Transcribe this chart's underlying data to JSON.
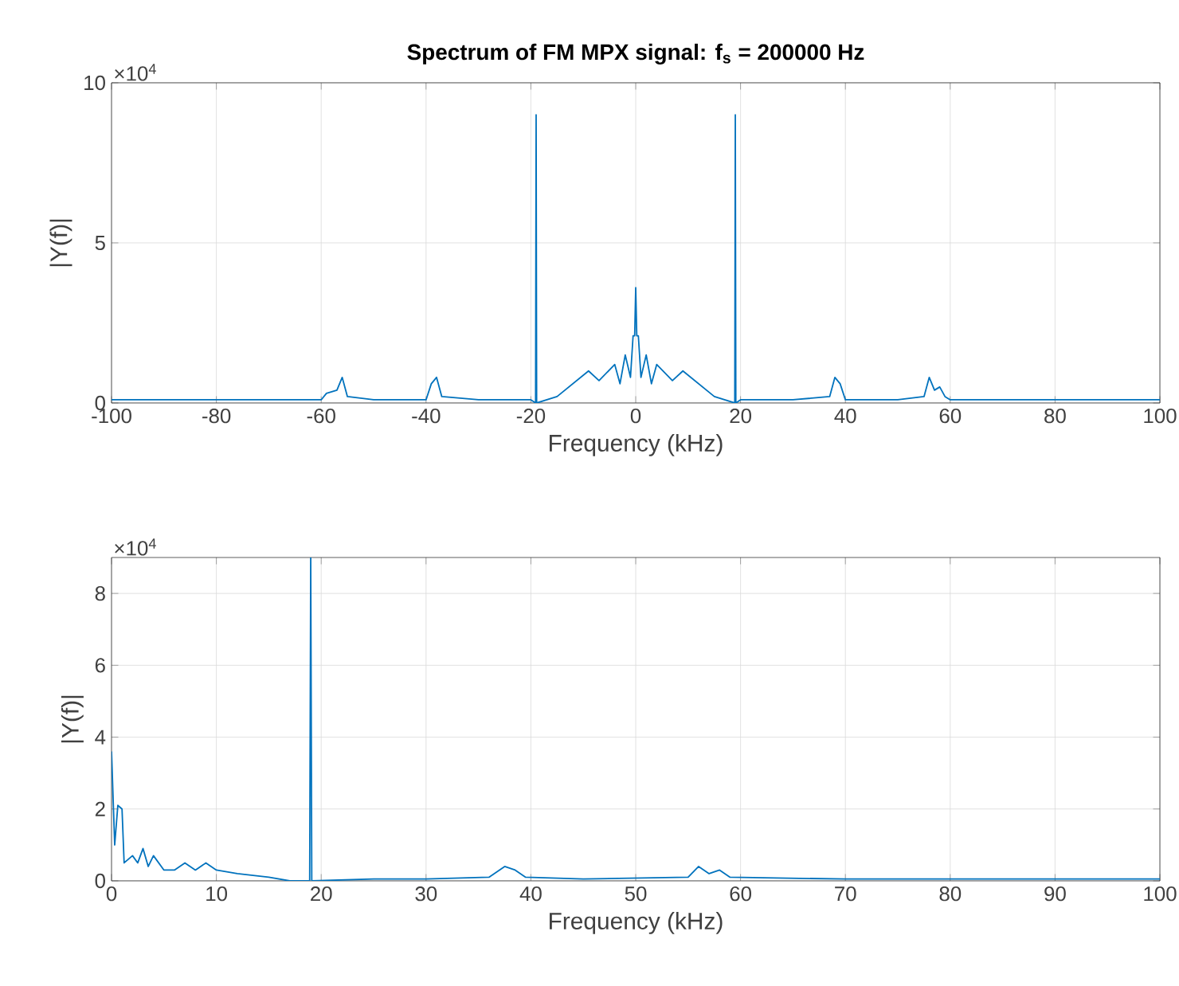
{
  "chart_data": [
    {
      "type": "line",
      "title": "Spectrum of FM MPX signal: f$_{s}$ = 200000 Hz",
      "xlabel": "Frequency (kHz)",
      "ylabel": "|Y(f)|",
      "annotations": [
        "×10$^{4}$"
      ],
      "xlim": [
        -100,
        100
      ],
      "ylim": [
        0,
        10
      ],
      "xticks": [
        -100,
        -80,
        -60,
        -40,
        -20,
        0,
        20,
        40,
        60,
        80,
        100
      ],
      "yticks": [
        0,
        5,
        10
      ],
      "grid": true,
      "series": [
        {
          "color": "#0072bd",
          "x": [
            -100,
            -80,
            -60,
            -59,
            -57,
            -56,
            -55,
            -50,
            -40,
            -39,
            -38,
            -37,
            -30,
            -20,
            -19.1,
            -19,
            -18.9,
            -15,
            -12,
            -9,
            -7,
            -4,
            -3,
            -2,
            -1,
            -0.5,
            -0.2,
            0,
            0.2,
            0.5,
            1,
            2,
            3,
            4,
            7,
            9,
            12,
            15,
            18.9,
            19,
            19.1,
            20,
            30,
            37,
            38,
            39,
            40,
            50,
            55,
            56,
            57,
            58,
            59,
            60,
            80,
            100
          ],
          "values": [
            0.1,
            0.1,
            0.1,
            0.3,
            0.4,
            0.8,
            0.2,
            0.1,
            0.1,
            0.6,
            0.8,
            0.2,
            0.1,
            0.1,
            0,
            9,
            0,
            0.2,
            0.6,
            1,
            0.7,
            1.2,
            0.6,
            1.5,
            0.8,
            2.1,
            2.1,
            3.6,
            2.1,
            2.1,
            0.8,
            1.5,
            0.6,
            1.2,
            0.7,
            1,
            0.6,
            0.2,
            0,
            9,
            0,
            0.1,
            0.1,
            0.2,
            0.8,
            0.6,
            0.1,
            0.1,
            0.2,
            0.8,
            0.4,
            0.5,
            0.2,
            0.1,
            0.1,
            0.1
          ]
        }
      ]
    },
    {
      "type": "line",
      "xlabel": "Frequency (kHz)",
      "ylabel": "|Y(f)|",
      "annotations": [
        "×10$^{4}$"
      ],
      "xlim": [
        0,
        100
      ],
      "ylim": [
        0,
        9
      ],
      "xticks": [
        0,
        10,
        20,
        30,
        40,
        50,
        60,
        70,
        80,
        90,
        100
      ],
      "yticks": [
        0,
        2,
        4,
        6,
        8
      ],
      "grid": true,
      "series": [
        {
          "color": "#0072bd",
          "x": [
            0,
            0.3,
            0.6,
            1,
            1.2,
            2,
            2.5,
            3,
            3.5,
            4,
            5,
            6,
            7,
            8,
            9,
            10,
            12,
            15,
            17,
            18.9,
            19,
            19.1,
            25,
            30,
            36,
            37.5,
            38.5,
            39.5,
            45,
            55,
            56,
            57,
            58,
            59,
            70,
            100
          ],
          "values": [
            3.6,
            1,
            2.1,
            2,
            0.5,
            0.7,
            0.5,
            0.9,
            0.4,
            0.7,
            0.3,
            0.3,
            0.5,
            0.3,
            0.5,
            0.3,
            0.2,
            0.1,
            0,
            0,
            9,
            0,
            0.05,
            0.05,
            0.1,
            0.4,
            0.3,
            0.1,
            0.05,
            0.1,
            0.4,
            0.2,
            0.3,
            0.1,
            0.05,
            0.05
          ]
        }
      ]
    }
  ]
}
